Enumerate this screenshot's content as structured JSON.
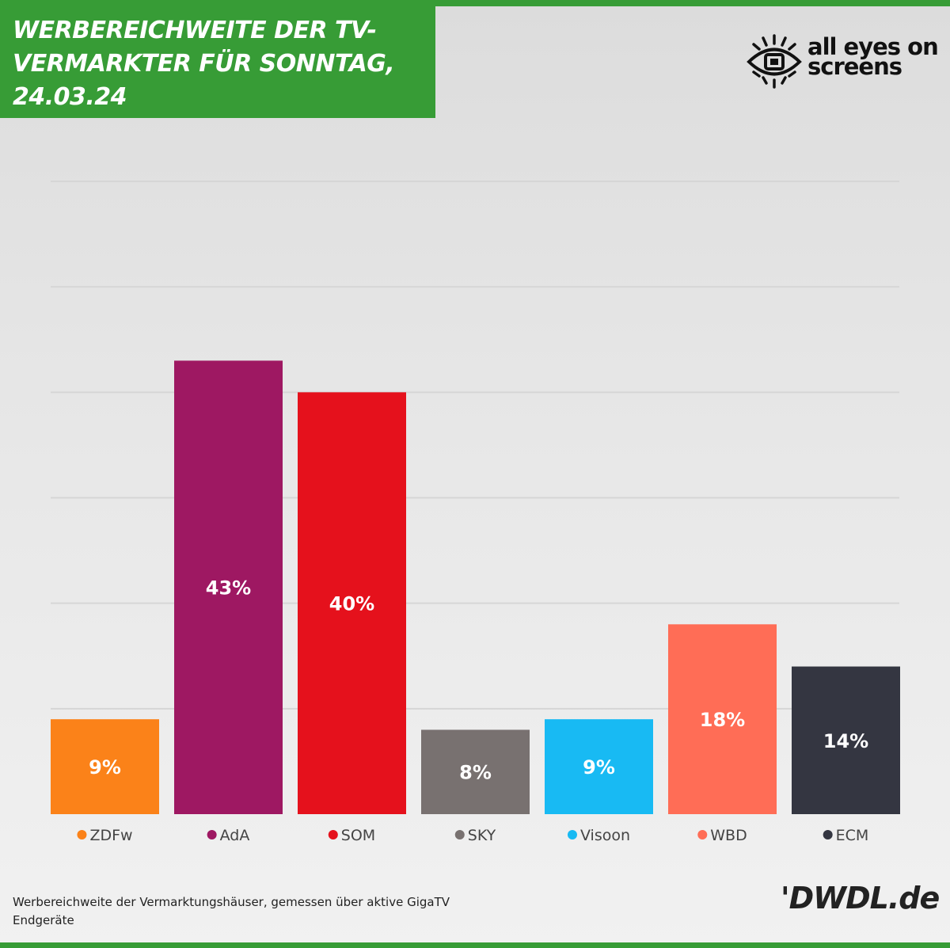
{
  "header": {
    "title": "WERBEREICHWEITE DER TV-\nVERMARKTER FÜR SONNTAG,\n24.03.24"
  },
  "logo": {
    "text": "all eyes on\nscreens",
    "icon": "eye-icon"
  },
  "colors": {
    "brand_green": "#379c36",
    "grid": "#d6d6d6"
  },
  "chart_data": {
    "type": "bar",
    "title": "WERBEREICHWEITE DER TV-VERMARKTER FÜR SONNTAG, 24.03.24",
    "categories": [
      "ZDFw",
      "AdA",
      "SOM",
      "SKY",
      "Visoon",
      "WBD",
      "ECM"
    ],
    "values": [
      9,
      43,
      40,
      8,
      9,
      18,
      14
    ],
    "value_labels": [
      "9%",
      "43%",
      "40%",
      "8%",
      "9%",
      "18%",
      "14%"
    ],
    "colors": [
      "#fb8219",
      "#9e1862",
      "#e5111c",
      "#787170",
      "#18baf3",
      "#ff6d56",
      "#343641"
    ],
    "ylim": [
      0,
      60
    ],
    "grid": true,
    "legend": "bottom",
    "xlabel": "",
    "ylabel": ""
  },
  "footer": {
    "note": "Werbereichweite der Vermarktungshäuser, gemessen über aktive GigaTV Endgeräte",
    "brand": "'DWDL.de"
  }
}
